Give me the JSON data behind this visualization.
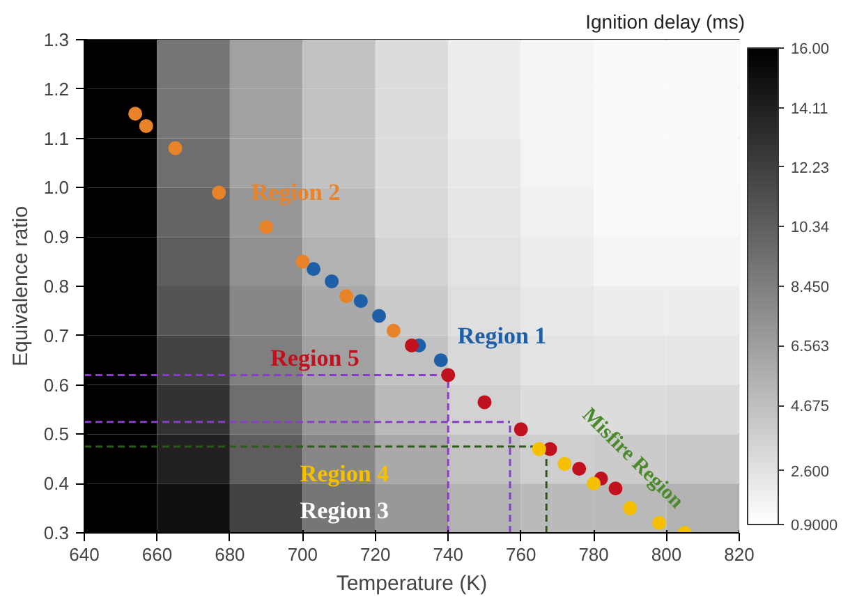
{
  "chart_data": {
    "type": "heatmap",
    "xlabel": "Temperature (K)",
    "ylabel": "Equivalence ratio",
    "clabel": "Ignition delay (ms)",
    "x": [
      650,
      670,
      690,
      710,
      730,
      750,
      770,
      790,
      810
    ],
    "y": [
      1.25,
      1.15,
      1.05,
      0.95,
      0.85,
      0.75,
      0.65,
      0.55,
      0.45,
      0.35
    ],
    "cells": [
      [
        16,
        9,
        6.5,
        4.5,
        3,
        2,
        1.5,
        1.2,
        1.2
      ],
      [
        16,
        9,
        6.5,
        4.5,
        3,
        2,
        1.5,
        1.2,
        1.2
      ],
      [
        16,
        9.5,
        6.5,
        4.5,
        3,
        2.2,
        1.6,
        1.2,
        1.2
      ],
      [
        16,
        10,
        7,
        5,
        3.2,
        2.4,
        1.8,
        1.3,
        1.3
      ],
      [
        16,
        10.5,
        7.5,
        5.5,
        3.5,
        2.6,
        2,
        1.6,
        1.6
      ],
      [
        16,
        11,
        8,
        6,
        4,
        2.8,
        2.3,
        2,
        2
      ],
      [
        16,
        12,
        8.5,
        6.5,
        4.5,
        3.2,
        2.6,
        2.4,
        2.4
      ],
      [
        16,
        13,
        9.5,
        7,
        5,
        3.6,
        3,
        3,
        3.2
      ],
      [
        16,
        14,
        10.5,
        8,
        6,
        4.5,
        3.8,
        4,
        4.2
      ],
      [
        16,
        15,
        12,
        9,
        7,
        5.5,
        5,
        5,
        5.5
      ]
    ],
    "clim": [
      0.9,
      16
    ],
    "cticks": [
      {
        "value": 0.9,
        "label": "0.9000"
      },
      {
        "value": 2.6,
        "label": "2.600"
      },
      {
        "value": 4.675,
        "label": "4.675"
      },
      {
        "value": 6.563,
        "label": "6.563"
      },
      {
        "value": 8.45,
        "label": "8.450"
      },
      {
        "value": 10.34,
        "label": "10.34"
      },
      {
        "value": 12.23,
        "label": "12.23"
      },
      {
        "value": 14.11,
        "label": "14.11"
      },
      {
        "value": 16,
        "label": "16.00"
      }
    ],
    "xlim": [
      640,
      820
    ],
    "xticks": [
      640,
      660,
      680,
      700,
      720,
      740,
      760,
      780,
      800,
      820
    ],
    "ylim": [
      0.3,
      1.3
    ],
    "yticks": [
      {
        "value": 0.3,
        "label": "0.3"
      },
      {
        "value": 0.4,
        "label": "0.4"
      },
      {
        "value": 0.5,
        "label": "0.5"
      },
      {
        "value": 0.6,
        "label": "0.6"
      },
      {
        "value": 0.7,
        "label": "0.7"
      },
      {
        "value": 0.8,
        "label": "0.8"
      },
      {
        "value": 0.9,
        "label": "0.9"
      },
      {
        "value": 1.0,
        "label": "1.0"
      },
      {
        "value": 1.1,
        "label": "1.1"
      },
      {
        "value": 1.2,
        "label": "1.2"
      },
      {
        "value": 1.3,
        "label": "1.3"
      }
    ],
    "series": [
      {
        "type": "scatter",
        "color": "#1f5fa8",
        "x": [
          703,
          708,
          716,
          721,
          732,
          738
        ],
        "values": [
          0.835,
          0.81,
          0.77,
          0.74,
          0.68,
          0.65
        ]
      },
      {
        "type": "scatter",
        "color": "#e8832a",
        "x": [
          654,
          657,
          665,
          677,
          690,
          700,
          712,
          725
        ],
        "values": [
          1.15,
          1.125,
          1.08,
          0.99,
          0.92,
          0.85,
          0.78,
          0.71
        ]
      },
      {
        "type": "scatter",
        "color": "#c0121e",
        "x": [
          730,
          740,
          750,
          760,
          768,
          776,
          782,
          786
        ],
        "values": [
          0.68,
          0.62,
          0.565,
          0.51,
          0.47,
          0.43,
          0.41,
          0.39
        ]
      },
      {
        "type": "scatter",
        "color": "#f5c000",
        "x": [
          765,
          772,
          780,
          790,
          798,
          805
        ],
        "values": [
          0.47,
          0.44,
          0.4,
          0.35,
          0.32,
          0.3
        ]
      }
    ],
    "marker": "circle",
    "annotations": [
      "Region 1",
      "Region 2",
      "Region 5",
      "Region 4",
      "Region 3",
      "Misfire Region"
    ],
    "ref_lines": [
      {
        "axis": "y",
        "value": 0.62,
        "color": "#8a3cc8",
        "line_style": "dashed"
      },
      {
        "axis": "y",
        "value": 0.525,
        "color": "#8a3cc8",
        "line_style": "dashed"
      },
      {
        "axis": "y",
        "value": 0.475,
        "color": "#2f5a1a",
        "line_style": "dashed"
      },
      {
        "axis": "x",
        "value": 740,
        "color": "#8a3cc8",
        "line_style": "dashed"
      },
      {
        "axis": "x",
        "value": 757,
        "color": "#8a3cc8",
        "line_style": "dashed"
      },
      {
        "axis": "x",
        "value": 767,
        "color": "#2f5a1a",
        "line_style": "dashed"
      }
    ]
  }
}
